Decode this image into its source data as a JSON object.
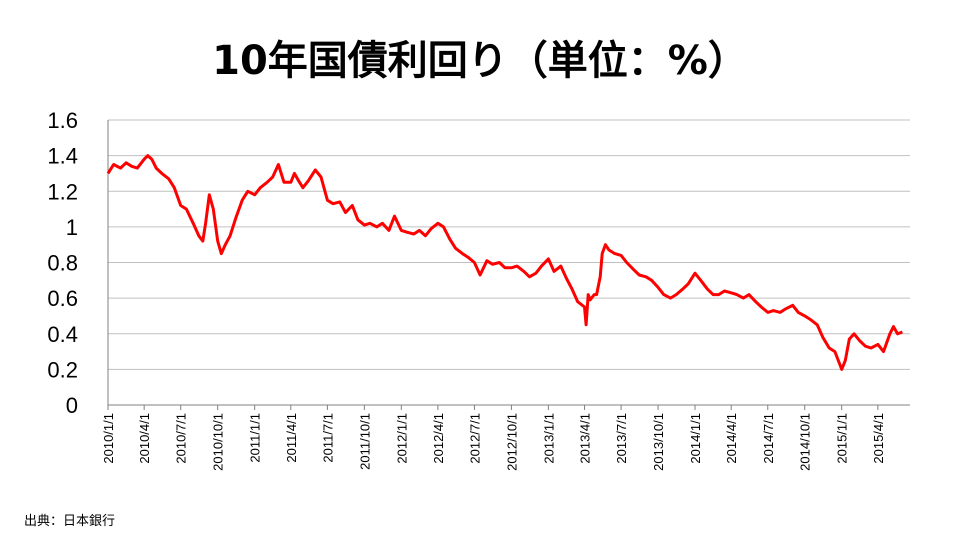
{
  "chart_data": {
    "type": "line",
    "title": "10年国債利回り（単位：%）",
    "ylim": [
      0,
      1.6
    ],
    "yticks": [
      "0",
      "0.2",
      "0.4",
      "0.6",
      "0.8",
      "1",
      "1.2",
      "1.4",
      "1.6"
    ],
    "grid": true,
    "line_color": "#ff0000",
    "x_tick_labels": [
      "2010/1/1",
      "2010/4/1",
      "2010/7/1",
      "2010/10/1",
      "2011/1/1",
      "2011/4/1",
      "2011/7/1",
      "2011/10/1",
      "2012/1/1",
      "2012/4/1",
      "2012/7/1",
      "2012/10/1",
      "2013/1/1",
      "2013/4/1",
      "2013/7/1",
      "2013/10/1",
      "2014/1/1",
      "2014/4/1",
      "2014/7/1",
      "2014/10/1",
      "2015/1/1",
      "2015/4/1"
    ],
    "series": [
      {
        "x": [
          "2010-01-01",
          "2010-01-15",
          "2010-02-01",
          "2010-02-15",
          "2010-03-01",
          "2010-03-15",
          "2010-04-01",
          "2010-04-10",
          "2010-04-20",
          "2010-05-01",
          "2010-05-15",
          "2010-06-01",
          "2010-06-15",
          "2010-07-01",
          "2010-07-15",
          "2010-08-01",
          "2010-08-15",
          "2010-08-25",
          "2010-09-01",
          "2010-09-10",
          "2010-09-20",
          "2010-10-01",
          "2010-10-10",
          "2010-10-20",
          "2010-11-01",
          "2010-11-15",
          "2010-12-01",
          "2010-12-15",
          "2011-01-01",
          "2011-01-15",
          "2011-02-01",
          "2011-02-15",
          "2011-03-01",
          "2011-03-15",
          "2011-04-01",
          "2011-04-10",
          "2011-04-20",
          "2011-05-01",
          "2011-05-15",
          "2011-06-01",
          "2011-06-15",
          "2011-07-01",
          "2011-07-15",
          "2011-08-01",
          "2011-08-15",
          "2011-09-01",
          "2011-09-15",
          "2011-10-01",
          "2011-10-15",
          "2011-11-01",
          "2011-11-15",
          "2011-12-01",
          "2011-12-15",
          "2012-01-01",
          "2012-01-15",
          "2012-02-01",
          "2012-02-15",
          "2012-03-01",
          "2012-03-15",
          "2012-04-01",
          "2012-04-15",
          "2012-05-01",
          "2012-05-15",
          "2012-06-01",
          "2012-06-15",
          "2012-07-01",
          "2012-07-15",
          "2012-08-01",
          "2012-08-15",
          "2012-09-01",
          "2012-09-15",
          "2012-10-01",
          "2012-10-15",
          "2012-11-01",
          "2012-11-15",
          "2012-12-01",
          "2012-12-15",
          "2013-01-01",
          "2013-01-15",
          "2013-02-01",
          "2013-02-15",
          "2013-03-01",
          "2013-03-15",
          "2013-04-01",
          "2013-04-05",
          "2013-04-10",
          "2013-04-15",
          "2013-04-25",
          "2013-05-01",
          "2013-05-10",
          "2013-05-15",
          "2013-05-23",
          "2013-06-01",
          "2013-06-15",
          "2013-07-01",
          "2013-07-15",
          "2013-08-01",
          "2013-08-15",
          "2013-09-01",
          "2013-09-15",
          "2013-10-01",
          "2013-10-15",
          "2013-11-01",
          "2013-11-15",
          "2013-12-01",
          "2013-12-15",
          "2014-01-01",
          "2014-01-15",
          "2014-02-01",
          "2014-02-15",
          "2014-03-01",
          "2014-03-15",
          "2014-04-01",
          "2014-04-15",
          "2014-05-01",
          "2014-05-15",
          "2014-06-01",
          "2014-06-15",
          "2014-07-01",
          "2014-07-15",
          "2014-08-01",
          "2014-08-15",
          "2014-09-01",
          "2014-09-15",
          "2014-10-01",
          "2014-10-15",
          "2014-11-01",
          "2014-11-15",
          "2014-12-01",
          "2014-12-15",
          "2015-01-01",
          "2015-01-10",
          "2015-01-20",
          "2015-02-01",
          "2015-02-15",
          "2015-03-01",
          "2015-03-15",
          "2015-04-01",
          "2015-04-15",
          "2015-05-01",
          "2015-05-10",
          "2015-05-20",
          "2015-06-01"
        ],
        "values": [
          1.3,
          1.35,
          1.33,
          1.36,
          1.34,
          1.33,
          1.38,
          1.4,
          1.38,
          1.33,
          1.3,
          1.27,
          1.22,
          1.12,
          1.1,
          1.02,
          0.95,
          0.92,
          1.02,
          1.18,
          1.1,
          0.92,
          0.85,
          0.9,
          0.95,
          1.05,
          1.15,
          1.2,
          1.18,
          1.22,
          1.25,
          1.28,
          1.35,
          1.25,
          1.25,
          1.3,
          1.26,
          1.22,
          1.26,
          1.32,
          1.28,
          1.15,
          1.13,
          1.14,
          1.08,
          1.12,
          1.04,
          1.01,
          1.02,
          1.0,
          1.02,
          0.98,
          1.06,
          0.98,
          0.97,
          0.96,
          0.98,
          0.95,
          0.99,
          1.02,
          1.0,
          0.93,
          0.88,
          0.85,
          0.83,
          0.8,
          0.73,
          0.81,
          0.79,
          0.8,
          0.77,
          0.77,
          0.78,
          0.75,
          0.72,
          0.74,
          0.78,
          0.82,
          0.75,
          0.78,
          0.71,
          0.65,
          0.58,
          0.55,
          0.45,
          0.62,
          0.59,
          0.62,
          0.62,
          0.72,
          0.85,
          0.9,
          0.87,
          0.85,
          0.84,
          0.8,
          0.76,
          0.73,
          0.72,
          0.7,
          0.66,
          0.62,
          0.6,
          0.62,
          0.65,
          0.68,
          0.74,
          0.7,
          0.65,
          0.62,
          0.62,
          0.64,
          0.63,
          0.62,
          0.6,
          0.62,
          0.58,
          0.55,
          0.52,
          0.53,
          0.52,
          0.54,
          0.56,
          0.52,
          0.5,
          0.48,
          0.45,
          0.38,
          0.32,
          0.3,
          0.2,
          0.25,
          0.37,
          0.4,
          0.36,
          0.33,
          0.32,
          0.34,
          0.3,
          0.4,
          0.44,
          0.4,
          0.41
        ]
      }
    ]
  },
  "source_note": "出典：日本銀行"
}
